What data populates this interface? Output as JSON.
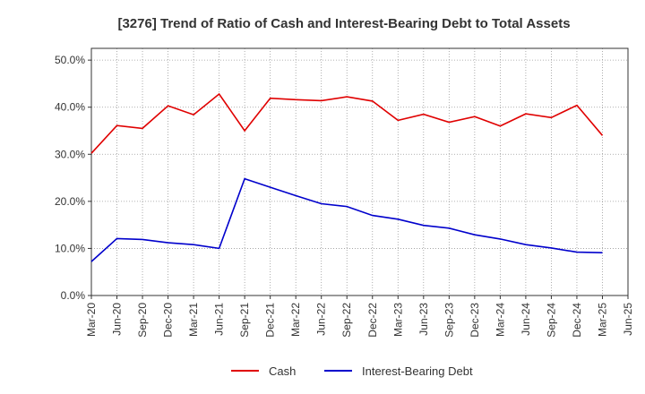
{
  "chart_data": {
    "type": "line",
    "title": "[3276]  Trend of Ratio of Cash and Interest-Bearing Debt to Total Assets",
    "xlabel": "",
    "ylabel": "",
    "ylim": [
      0,
      52.5
    ],
    "yticks": [
      0,
      10,
      20,
      30,
      40,
      50
    ],
    "ytick_labels": [
      "0.0%",
      "10.0%",
      "20.0%",
      "30.0%",
      "40.0%",
      "50.0%"
    ],
    "grid": true,
    "legend_position": "bottom-center",
    "categories": [
      "Mar-20",
      "Jun-20",
      "Sep-20",
      "Dec-20",
      "Mar-21",
      "Jun-21",
      "Sep-21",
      "Dec-21",
      "Mar-22",
      "Jun-22",
      "Sep-22",
      "Dec-22",
      "Mar-23",
      "Jun-23",
      "Sep-23",
      "Dec-23",
      "Mar-24",
      "Jun-24",
      "Sep-24",
      "Dec-24",
      "Mar-25",
      "Jun-25"
    ],
    "series": [
      {
        "name": "Cash",
        "color": "#e00000",
        "values": [
          30.2,
          36.1,
          35.5,
          40.3,
          38.4,
          42.8,
          35.0,
          41.9,
          41.6,
          41.4,
          42.2,
          41.3,
          37.2,
          38.5,
          36.8,
          38.0,
          36.0,
          38.6,
          37.8,
          40.4,
          34.0,
          null
        ]
      },
      {
        "name": "Interest-Bearing Debt",
        "color": "#0000cc",
        "values": [
          7.2,
          12.1,
          11.9,
          11.2,
          10.8,
          10.0,
          24.8,
          23.0,
          21.2,
          19.5,
          18.9,
          17.0,
          16.2,
          14.9,
          14.3,
          12.9,
          12.0,
          10.8,
          10.1,
          9.2,
          9.1,
          null
        ]
      }
    ]
  }
}
